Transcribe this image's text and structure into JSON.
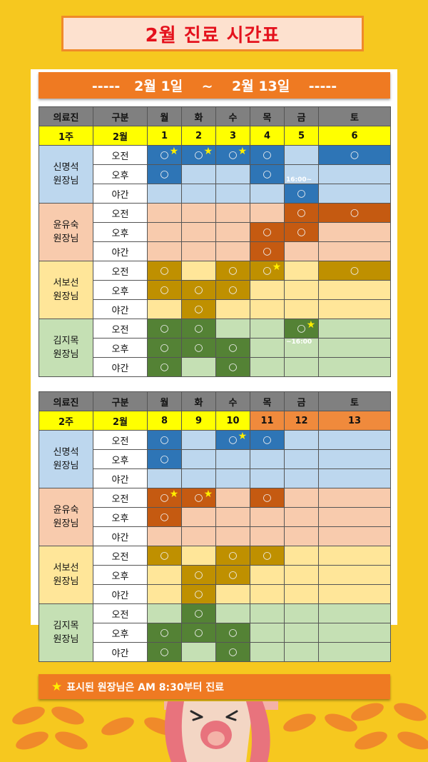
{
  "title": "2월 진료 시간표",
  "range": "-----   2월 1일    ~    2월 13일    -----",
  "header": [
    "의료진",
    "구분",
    "월",
    "화",
    "수",
    "목",
    "금",
    "토"
  ],
  "periods": [
    "오전",
    "오후",
    "야간"
  ],
  "colors": {
    "blue": {
      "light": "#bdd7ee",
      "dark": "#2e75b6"
    },
    "peach": {
      "light": "#f8cbad",
      "dark": "#c55a11"
    },
    "yellow": {
      "light": "#ffe699",
      "dark": "#bf9000"
    },
    "green": {
      "light": "#c5e0b4",
      "dark": "#548235"
    }
  },
  "weeks": [
    {
      "week_label": "1주",
      "month_label": "2월",
      "dates": [
        {
          "d": "1",
          "hol": false
        },
        {
          "d": "2",
          "hol": false
        },
        {
          "d": "3",
          "hol": false
        },
        {
          "d": "4",
          "hol": false
        },
        {
          "d": "5",
          "hol": false
        },
        {
          "d": "6",
          "hol": false
        }
      ],
      "doctors": [
        {
          "line1": "신명석",
          "line2": "원장님",
          "color": "blue",
          "grid": [
            [
              2,
              2,
              2,
              1,
              0,
              1
            ],
            [
              1,
              0,
              0,
              1,
              0,
              0
            ],
            [
              0,
              0,
              0,
              0,
              1,
              0
            ]
          ],
          "notes": [
            {
              "row": 1,
              "col": 4,
              "text": "16:00~",
              "pos": "bottom"
            }
          ]
        },
        {
          "line1": "윤유숙",
          "line2": "원장님",
          "color": "peach",
          "grid": [
            [
              0,
              0,
              0,
              0,
              1,
              1
            ],
            [
              0,
              0,
              0,
              1,
              1,
              0
            ],
            [
              0,
              0,
              0,
              1,
              0,
              0
            ]
          ],
          "notes": []
        },
        {
          "line1": "서보선",
          "line2": "원장님",
          "color": "yellow",
          "grid": [
            [
              1,
              0,
              1,
              2,
              0,
              1
            ],
            [
              1,
              1,
              1,
              0,
              0,
              0
            ],
            [
              0,
              1,
              0,
              0,
              0,
              0
            ]
          ],
          "notes": []
        },
        {
          "line1": "김지목",
          "line2": "원장님",
          "color": "green",
          "grid": [
            [
              1,
              1,
              0,
              0,
              2,
              0
            ],
            [
              1,
              1,
              1,
              0,
              0,
              0
            ],
            [
              1,
              0,
              1,
              0,
              0,
              0
            ]
          ],
          "notes": [
            {
              "row": 1,
              "col": 4,
              "text": "~16:00",
              "pos": "top"
            }
          ]
        }
      ]
    },
    {
      "week_label": "2주",
      "month_label": "2월",
      "dates": [
        {
          "d": "8",
          "hol": false
        },
        {
          "d": "9",
          "hol": false
        },
        {
          "d": "10",
          "hol": false
        },
        {
          "d": "11",
          "hol": true
        },
        {
          "d": "12",
          "hol": true
        },
        {
          "d": "13",
          "hol": true
        }
      ],
      "doctors": [
        {
          "line1": "신명석",
          "line2": "원장님",
          "color": "blue",
          "grid": [
            [
              1,
              0,
              2,
              1,
              0,
              0
            ],
            [
              1,
              0,
              0,
              0,
              0,
              0
            ],
            [
              0,
              0,
              0,
              0,
              0,
              0
            ]
          ],
          "notes": []
        },
        {
          "line1": "윤유숙",
          "line2": "원장님",
          "color": "peach",
          "grid": [
            [
              2,
              2,
              0,
              1,
              0,
              0
            ],
            [
              1,
              0,
              0,
              0,
              0,
              0
            ],
            [
              0,
              0,
              0,
              0,
              0,
              0
            ]
          ],
          "notes": []
        },
        {
          "line1": "서보선",
          "line2": "원장님",
          "color": "yellow",
          "grid": [
            [
              1,
              0,
              1,
              1,
              0,
              0
            ],
            [
              0,
              1,
              1,
              0,
              0,
              0
            ],
            [
              0,
              1,
              0,
              0,
              0,
              0
            ]
          ],
          "notes": []
        },
        {
          "line1": "김지목",
          "line2": "원장님",
          "color": "green",
          "grid": [
            [
              0,
              1,
              0,
              0,
              0,
              0
            ],
            [
              1,
              1,
              1,
              0,
              0,
              0
            ],
            [
              1,
              0,
              1,
              0,
              0,
              0
            ]
          ],
          "notes": []
        }
      ]
    }
  ],
  "mark": "○",
  "star": "★",
  "footer_star": "★",
  "footer": "표시된 원장님은 AM 8:30부터 진료"
}
